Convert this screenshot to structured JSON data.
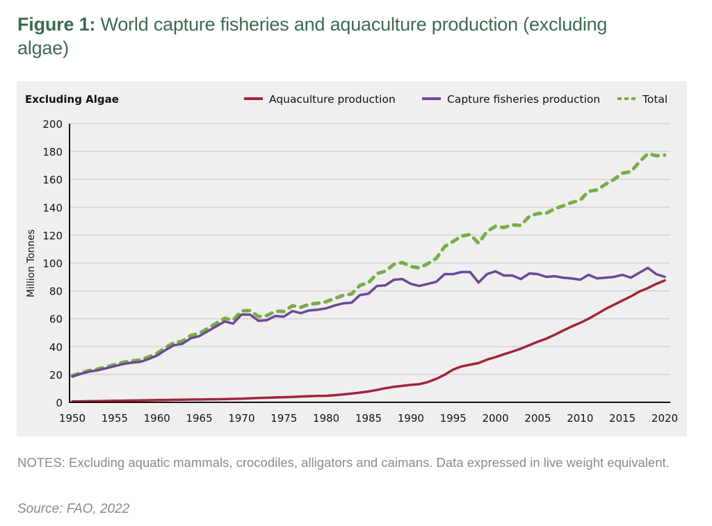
{
  "figure": {
    "title_prefix": "Figure 1:",
    "title_text": " World capture fisheries and aquaculture production (excluding algae)",
    "notes": "NOTES: Excluding aquatic mammals, crocodiles, alligators and caimans. Data expressed in live weight equivalent.",
    "source": "Source: FAO, 2022"
  },
  "colors": {
    "aquaculture": "#a3243b",
    "capture": "#6b4896",
    "total": "#78ad4a",
    "title": "#3c6b50",
    "panel": "#efefef",
    "grid": "#d3d3d3"
  },
  "chart_data": {
    "type": "line",
    "title": "Excluding Algae",
    "xlabel": "",
    "ylabel": "Million Tonnes",
    "xlim": [
      1950,
      2020
    ],
    "ylim": [
      0,
      200
    ],
    "yticks": [
      0,
      20,
      40,
      60,
      80,
      100,
      120,
      140,
      160,
      180,
      200
    ],
    "xticks": [
      1950,
      1955,
      1960,
      1965,
      1970,
      1975,
      1980,
      1985,
      1990,
      1995,
      2000,
      2005,
      2010,
      2015,
      2020
    ],
    "grid": true,
    "legend_position": "top-right",
    "x": [
      1950,
      1951,
      1952,
      1953,
      1954,
      1955,
      1956,
      1957,
      1958,
      1959,
      1960,
      1961,
      1962,
      1963,
      1964,
      1965,
      1966,
      1967,
      1968,
      1969,
      1970,
      1971,
      1972,
      1973,
      1974,
      1975,
      1976,
      1977,
      1978,
      1979,
      1980,
      1981,
      1982,
      1983,
      1984,
      1985,
      1986,
      1987,
      1988,
      1989,
      1990,
      1991,
      1992,
      1993,
      1994,
      1995,
      1996,
      1997,
      1998,
      1999,
      2000,
      2001,
      2002,
      2003,
      2004,
      2005,
      2006,
      2007,
      2008,
      2009,
      2010,
      2011,
      2012,
      2013,
      2014,
      2015,
      2016,
      2017,
      2018,
      2019,
      2020
    ],
    "series": [
      {
        "name": "Aquaculture production",
        "style": "solid",
        "values": [
          0.6,
          0.7,
          0.8,
          0.9,
          1.0,
          1.1,
          1.2,
          1.3,
          1.4,
          1.5,
          1.6,
          1.7,
          1.8,
          1.9,
          2.0,
          2.0,
          2.1,
          2.2,
          2.3,
          2.5,
          2.6,
          2.9,
          3.1,
          3.3,
          3.5,
          3.7,
          3.9,
          4.2,
          4.4,
          4.6,
          4.7,
          5.1,
          5.7,
          6.3,
          7.0,
          7.8,
          8.9,
          10.1,
          11.1,
          11.8,
          12.5,
          13.0,
          14.5,
          16.8,
          19.8,
          23.5,
          25.8,
          27.0,
          28.2,
          30.6,
          32.4,
          34.5,
          36.4,
          38.5,
          41.0,
          43.5,
          45.7,
          48.5,
          51.5,
          54.4,
          57.0,
          60.0,
          63.4,
          67.0,
          70.0,
          73.0,
          76.0,
          79.5,
          82.0,
          85.0,
          87.5
        ]
      },
      {
        "name": "Capture fisheries production",
        "style": "solid",
        "values": [
          18.5,
          20.5,
          22.0,
          23.0,
          24.5,
          26.0,
          27.5,
          28.5,
          29.0,
          31.0,
          33.5,
          37.5,
          41.0,
          42.0,
          46.0,
          47.5,
          51.0,
          54.5,
          58.0,
          56.5,
          63.0,
          63.0,
          58.5,
          59.0,
          62.0,
          61.5,
          65.5,
          64.0,
          66.0,
          66.5,
          67.5,
          69.5,
          71.0,
          71.5,
          77.0,
          78.0,
          83.5,
          84.0,
          88.0,
          88.5,
          85.0,
          83.5,
          85.0,
          86.5,
          92.0,
          92.0,
          93.5,
          93.5,
          86.0,
          92.0,
          94.0,
          91.0,
          91.0,
          88.5,
          92.5,
          92.0,
          90.0,
          90.5,
          89.5,
          89.0,
          88.0,
          91.5,
          89.0,
          89.5,
          90.0,
          91.5,
          89.5,
          93.0,
          96.5,
          92.0,
          90.0
        ]
      },
      {
        "name": "Total",
        "style": "dashed",
        "values": [
          19.1,
          21.2,
          22.8,
          23.9,
          25.5,
          27.1,
          28.7,
          29.8,
          30.4,
          32.5,
          35.1,
          39.2,
          42.8,
          43.9,
          48.0,
          49.5,
          53.1,
          56.7,
          60.3,
          59.0,
          65.6,
          65.9,
          61.6,
          62.3,
          65.5,
          65.2,
          69.4,
          68.2,
          70.4,
          71.1,
          72.2,
          74.6,
          76.7,
          77.8,
          84.0,
          85.8,
          92.4,
          94.1,
          99.1,
          100.3,
          97.5,
          96.5,
          99.5,
          103.3,
          111.8,
          115.5,
          119.3,
          120.5,
          114.2,
          122.6,
          126.4,
          125.5,
          127.4,
          127.0,
          133.5,
          135.5,
          135.7,
          139.0,
          141.0,
          143.4,
          145.0,
          151.5,
          152.4,
          156.5,
          160.0,
          164.5,
          165.5,
          172.5,
          178.5,
          177.0,
          177.5
        ]
      }
    ]
  }
}
